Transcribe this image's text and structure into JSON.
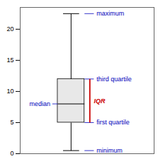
{
  "chart_data": {
    "type": "box",
    "minimum": 0.5,
    "q1": 5.0,
    "median": 8.0,
    "q3": 12.0,
    "maximum": 22.5,
    "ylim": [
      0,
      23.5
    ],
    "yticks": [
      0,
      5,
      10,
      15,
      20
    ],
    "tick_labels": "y",
    "color": "#e8e8e8",
    "annotations": [
      {
        "text": "maximum",
        "y": 22.5,
        "color": "#0000bb"
      },
      {
        "text": "third quartile",
        "y": 12.0,
        "color": "#0000bb"
      },
      {
        "text": "first quartile",
        "y": 5.0,
        "color": "#0000bb"
      },
      {
        "text": "minimum",
        "y": 0.5,
        "color": "#0000bb"
      },
      {
        "text": "median",
        "y": 8.0,
        "color": "#0000bb"
      },
      {
        "text": "IQR",
        "from": 5.0,
        "to": 12.0,
        "color": "#cc0000"
      }
    ]
  }
}
